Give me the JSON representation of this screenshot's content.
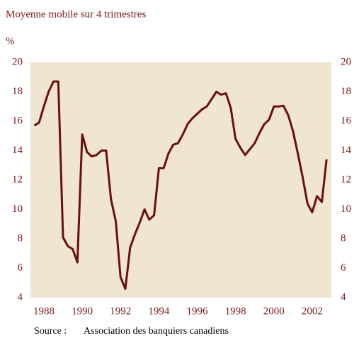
{
  "chart_data": {
    "type": "line",
    "title": "Moyenne mobile sur 4 trimestres",
    "y_label": "%",
    "source_label": "Source :",
    "source": "Association des banquiers canadiens",
    "x": [
      1987.5,
      1987.75,
      1988,
      1988.25,
      1988.5,
      1988.75,
      1989,
      1989.25,
      1989.5,
      1989.75,
      1990,
      1990.25,
      1990.5,
      1990.75,
      1991,
      1991.25,
      1991.5,
      1991.75,
      1992,
      1992.25,
      1992.5,
      1992.75,
      1993,
      1993.25,
      1993.5,
      1993.75,
      1994,
      1994.25,
      1994.5,
      1994.75,
      1995,
      1995.25,
      1995.5,
      1995.75,
      1996,
      1996.25,
      1996.5,
      1996.75,
      1997,
      1997.25,
      1997.5,
      1997.75,
      1998,
      1998.25,
      1998.5,
      1998.75,
      1999,
      1999.25,
      1999.5,
      1999.75,
      2000,
      2000.25,
      2000.5,
      2000.75,
      2001,
      2001.25,
      2001.5,
      2001.75,
      2002,
      2002.25,
      2002.5,
      2002.75
    ],
    "series": [
      {
        "color": "#6b0f0f",
        "values": [
          15.7,
          15.9,
          17,
          18,
          18.7,
          18.7,
          8.1,
          7.5,
          7.3,
          6.4,
          15.1,
          13.9,
          13.6,
          13.7,
          14,
          14,
          10.7,
          9.2,
          5.4,
          4.6,
          7.4,
          8.3,
          9.1,
          10,
          9.3,
          9.6,
          12.8,
          12.8,
          13.8,
          14.4,
          14.5,
          15.1,
          15.8,
          16.2,
          16.5,
          16.8,
          17,
          17.5,
          18,
          17.8,
          17.9,
          16.9,
          14.8,
          14.2,
          13.7,
          14.1,
          14.5,
          15.2,
          15.8,
          16.1,
          17,
          17,
          17.05,
          16.4,
          15.3,
          13.8,
          12.2,
          10.4,
          9.8,
          10.9,
          10.5,
          13.4
        ]
      }
    ],
    "xlim": [
      1987.3,
      2003.0
    ],
    "xticks": [
      1988,
      1990,
      1992,
      1994,
      1996,
      1998,
      2000,
      2002
    ],
    "ylim": [
      4,
      20
    ],
    "yticks": [
      4,
      6,
      8,
      10,
      12,
      14,
      16,
      18,
      20
    ],
    "plot_background": "#efe5d0",
    "text_color": "#7a1a1a"
  }
}
